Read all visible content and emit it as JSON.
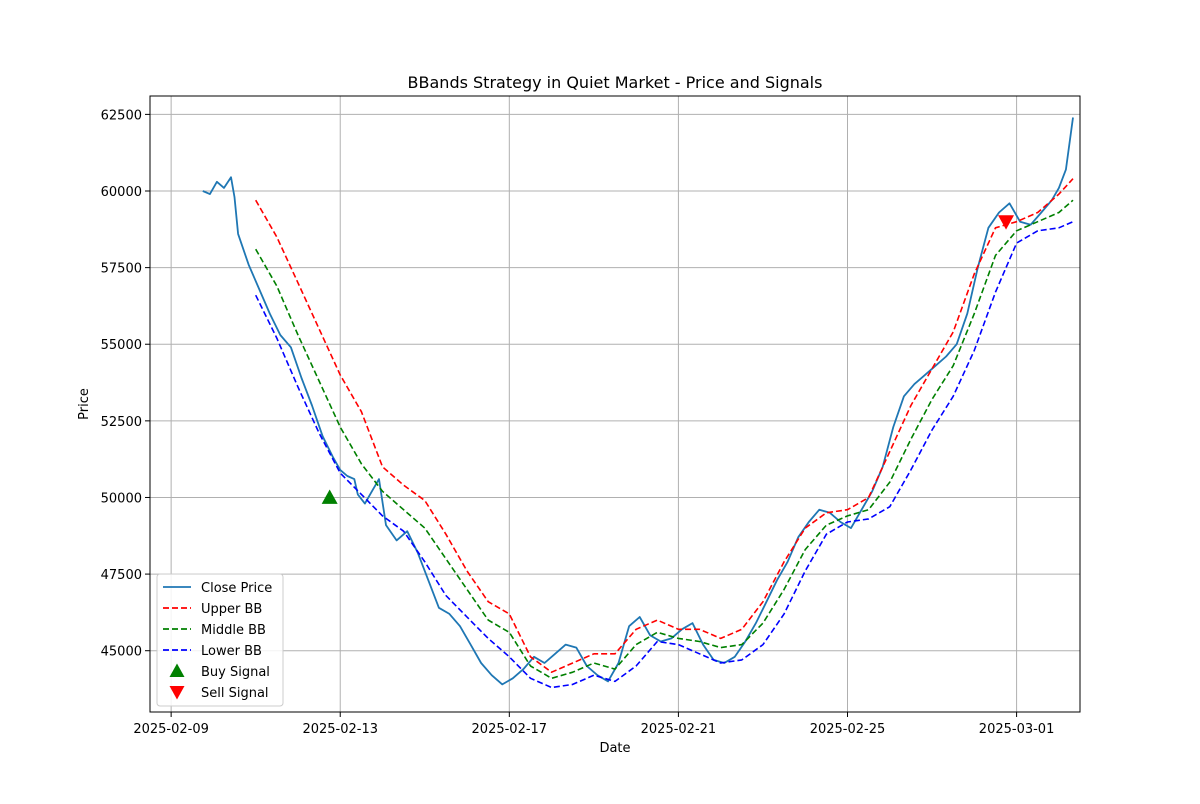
{
  "chart_data": {
    "type": "line",
    "title": "BBands Strategy in Quiet Market - Price and Signals",
    "xlabel": "Date",
    "ylabel": "Price",
    "x_range": [
      "2025-02-08 12:00",
      "2025-03-02 12:00"
    ],
    "ylim": [
      43000,
      63100
    ],
    "x_ticks": [
      "2025-02-09",
      "2025-02-13",
      "2025-02-17",
      "2025-02-21",
      "2025-02-25",
      "2025-03-01"
    ],
    "y_ticks": [
      45000,
      47500,
      50000,
      52500,
      55000,
      57500,
      60000,
      62500
    ],
    "grid": true,
    "legend_placement": "lower-left",
    "colors": {
      "close": "#1f77b4",
      "upper": "#ff0000",
      "middle": "#008000",
      "lower": "#0000ff",
      "buy": "#008000",
      "sell": "#ff0000"
    },
    "series": [
      {
        "name": "Close Price",
        "style": "solid",
        "points": [
          [
            "2025-02-09 18:00",
            60000
          ],
          [
            "2025-02-09 22:00",
            59900
          ],
          [
            "2025-02-10 02:00",
            60300
          ],
          [
            "2025-02-10 06:00",
            60100
          ],
          [
            "2025-02-10 10:00",
            60450
          ],
          [
            "2025-02-10 12:00",
            59800
          ],
          [
            "2025-02-10 14:00",
            58600
          ],
          [
            "2025-02-10 20:00",
            57600
          ],
          [
            "2025-02-11 02:00",
            56800
          ],
          [
            "2025-02-11 08:00",
            56000
          ],
          [
            "2025-02-11 14:00",
            55300
          ],
          [
            "2025-02-11 20:00",
            54900
          ],
          [
            "2025-02-12 02:00",
            53900
          ],
          [
            "2025-02-12 08:00",
            53000
          ],
          [
            "2025-02-12 14:00",
            52000
          ],
          [
            "2025-02-12 20:00",
            51300
          ],
          [
            "2025-02-13 00:00",
            50900
          ],
          [
            "2025-02-13 04:00",
            50700
          ],
          [
            "2025-02-13 08:00",
            50600
          ],
          [
            "2025-02-13 10:00",
            50100
          ],
          [
            "2025-02-13 14:00",
            49800
          ],
          [
            "2025-02-13 18:00",
            50200
          ],
          [
            "2025-02-13 22:00",
            50600
          ],
          [
            "2025-02-14 02:00",
            49100
          ],
          [
            "2025-02-14 08:00",
            48600
          ],
          [
            "2025-02-14 14:00",
            48900
          ],
          [
            "2025-02-14 20:00",
            48200
          ],
          [
            "2025-02-15 02:00",
            47300
          ],
          [
            "2025-02-15 08:00",
            46400
          ],
          [
            "2025-02-15 14:00",
            46200
          ],
          [
            "2025-02-15 20:00",
            45800
          ],
          [
            "2025-02-16 02:00",
            45200
          ],
          [
            "2025-02-16 08:00",
            44600
          ],
          [
            "2025-02-16 14:00",
            44200
          ],
          [
            "2025-02-16 20:00",
            43900
          ],
          [
            "2025-02-17 02:00",
            44100
          ],
          [
            "2025-02-17 08:00",
            44400
          ],
          [
            "2025-02-17 14:00",
            44800
          ],
          [
            "2025-02-17 20:00",
            44600
          ],
          [
            "2025-02-18 02:00",
            44900
          ],
          [
            "2025-02-18 08:00",
            45200
          ],
          [
            "2025-02-18 14:00",
            45100
          ],
          [
            "2025-02-18 20:00",
            44500
          ],
          [
            "2025-02-19 02:00",
            44200
          ],
          [
            "2025-02-19 08:00",
            44000
          ],
          [
            "2025-02-19 14:00",
            44600
          ],
          [
            "2025-02-19 20:00",
            45800
          ],
          [
            "2025-02-20 02:00",
            46100
          ],
          [
            "2025-02-20 08:00",
            45500
          ],
          [
            "2025-02-20 14:00",
            45300
          ],
          [
            "2025-02-20 20:00",
            45400
          ],
          [
            "2025-02-21 02:00",
            45700
          ],
          [
            "2025-02-21 08:00",
            45900
          ],
          [
            "2025-02-21 14:00",
            45200
          ],
          [
            "2025-02-21 20:00",
            44700
          ],
          [
            "2025-02-22 02:00",
            44600
          ],
          [
            "2025-02-22 08:00",
            44800
          ],
          [
            "2025-02-22 14:00",
            45300
          ],
          [
            "2025-02-22 20:00",
            45900
          ],
          [
            "2025-02-23 02:00",
            46600
          ],
          [
            "2025-02-23 08:00",
            47300
          ],
          [
            "2025-02-23 14:00",
            47900
          ],
          [
            "2025-02-23 20:00",
            48700
          ],
          [
            "2025-02-24 02:00",
            49200
          ],
          [
            "2025-02-24 08:00",
            49600
          ],
          [
            "2025-02-24 14:00",
            49500
          ],
          [
            "2025-02-24 20:00",
            49200
          ],
          [
            "2025-02-25 02:00",
            49000
          ],
          [
            "2025-02-25 08:00",
            49600
          ],
          [
            "2025-02-25 14:00",
            50200
          ],
          [
            "2025-02-25 20:00",
            51000
          ],
          [
            "2025-02-26 02:00",
            52300
          ],
          [
            "2025-02-26 08:00",
            53300
          ],
          [
            "2025-02-26 14:00",
            53700
          ],
          [
            "2025-02-26 20:00",
            54000
          ],
          [
            "2025-02-27 02:00",
            54300
          ],
          [
            "2025-02-27 08:00",
            54600
          ],
          [
            "2025-02-27 14:00",
            55000
          ],
          [
            "2025-02-27 20:00",
            56000
          ],
          [
            "2025-02-28 02:00",
            57500
          ],
          [
            "2025-02-28 08:00",
            58800
          ],
          [
            "2025-02-28 14:00",
            59300
          ],
          [
            "2025-02-28 20:00",
            59600
          ],
          [
            "2025-03-01 02:00",
            59000
          ],
          [
            "2025-03-01 08:00",
            58900
          ],
          [
            "2025-03-01 14:00",
            59300
          ],
          [
            "2025-03-01 20:00",
            59700
          ],
          [
            "2025-03-02 00:00",
            60100
          ],
          [
            "2025-03-02 04:00",
            60700
          ],
          [
            "2025-03-02 08:00",
            62400
          ]
        ]
      },
      {
        "name": "Upper BB",
        "style": "dashed",
        "points": [
          [
            "2025-02-11 00:00",
            59700
          ],
          [
            "2025-02-11 12:00",
            58500
          ],
          [
            "2025-02-12 00:00",
            57000
          ],
          [
            "2025-02-12 12:00",
            55500
          ],
          [
            "2025-02-13 00:00",
            54000
          ],
          [
            "2025-02-13 12:00",
            52800
          ],
          [
            "2025-02-14 00:00",
            51000
          ],
          [
            "2025-02-14 12:00",
            50400
          ],
          [
            "2025-02-15 00:00",
            49900
          ],
          [
            "2025-02-15 12:00",
            48800
          ],
          [
            "2025-02-16 00:00",
            47600
          ],
          [
            "2025-02-16 12:00",
            46600
          ],
          [
            "2025-02-17 00:00",
            46200
          ],
          [
            "2025-02-17 12:00",
            44800
          ],
          [
            "2025-02-18 00:00",
            44300
          ],
          [
            "2025-02-18 12:00",
            44600
          ],
          [
            "2025-02-19 00:00",
            44900
          ],
          [
            "2025-02-19 12:00",
            44900
          ],
          [
            "2025-02-20 00:00",
            45700
          ],
          [
            "2025-02-20 12:00",
            46000
          ],
          [
            "2025-02-21 00:00",
            45700
          ],
          [
            "2025-02-21 12:00",
            45700
          ],
          [
            "2025-02-22 00:00",
            45400
          ],
          [
            "2025-02-22 12:00",
            45700
          ],
          [
            "2025-02-23 00:00",
            46600
          ],
          [
            "2025-02-23 12:00",
            47900
          ],
          [
            "2025-02-24 00:00",
            49000
          ],
          [
            "2025-02-24 12:00",
            49500
          ],
          [
            "2025-02-25 00:00",
            49600
          ],
          [
            "2025-02-25 12:00",
            50000
          ],
          [
            "2025-02-26 00:00",
            51500
          ],
          [
            "2025-02-26 12:00",
            53000
          ],
          [
            "2025-02-27 00:00",
            54200
          ],
          [
            "2025-02-27 12:00",
            55400
          ],
          [
            "2025-02-28 00:00",
            57300
          ],
          [
            "2025-02-28 12:00",
            58800
          ],
          [
            "2025-03-01 00:00",
            59000
          ],
          [
            "2025-03-01 12:00",
            59300
          ],
          [
            "2025-03-02 00:00",
            59900
          ],
          [
            "2025-03-02 08:00",
            60400
          ]
        ]
      },
      {
        "name": "Middle BB",
        "style": "dashed",
        "points": [
          [
            "2025-02-11 00:00",
            58100
          ],
          [
            "2025-02-11 12:00",
            56900
          ],
          [
            "2025-02-12 00:00",
            55300
          ],
          [
            "2025-02-12 12:00",
            53800
          ],
          [
            "2025-02-13 00:00",
            52300
          ],
          [
            "2025-02-13 12:00",
            51100
          ],
          [
            "2025-02-14 00:00",
            50200
          ],
          [
            "2025-02-14 12:00",
            49600
          ],
          [
            "2025-02-15 00:00",
            49000
          ],
          [
            "2025-02-15 12:00",
            48000
          ],
          [
            "2025-02-16 00:00",
            47000
          ],
          [
            "2025-02-16 12:00",
            46000
          ],
          [
            "2025-02-17 00:00",
            45600
          ],
          [
            "2025-02-17 12:00",
            44500
          ],
          [
            "2025-02-18 00:00",
            44100
          ],
          [
            "2025-02-18 12:00",
            44300
          ],
          [
            "2025-02-19 00:00",
            44600
          ],
          [
            "2025-02-19 12:00",
            44400
          ],
          [
            "2025-02-20 00:00",
            45200
          ],
          [
            "2025-02-20 12:00",
            45600
          ],
          [
            "2025-02-21 00:00",
            45400
          ],
          [
            "2025-02-21 12:00",
            45300
          ],
          [
            "2025-02-22 00:00",
            45100
          ],
          [
            "2025-02-22 12:00",
            45200
          ],
          [
            "2025-02-23 00:00",
            45900
          ],
          [
            "2025-02-23 12:00",
            47000
          ],
          [
            "2025-02-24 00:00",
            48300
          ],
          [
            "2025-02-24 12:00",
            49100
          ],
          [
            "2025-02-25 00:00",
            49400
          ],
          [
            "2025-02-25 12:00",
            49600
          ],
          [
            "2025-02-26 00:00",
            50500
          ],
          [
            "2025-02-26 12:00",
            51900
          ],
          [
            "2025-02-27 00:00",
            53200
          ],
          [
            "2025-02-27 12:00",
            54300
          ],
          [
            "2025-02-28 00:00",
            56000
          ],
          [
            "2025-02-28 12:00",
            57900
          ],
          [
            "2025-03-01 00:00",
            58700
          ],
          [
            "2025-03-01 12:00",
            59000
          ],
          [
            "2025-03-02 00:00",
            59300
          ],
          [
            "2025-03-02 08:00",
            59700
          ]
        ]
      },
      {
        "name": "Lower BB",
        "style": "dashed",
        "points": [
          [
            "2025-02-11 00:00",
            56600
          ],
          [
            "2025-02-11 12:00",
            55200
          ],
          [
            "2025-02-12 00:00",
            53600
          ],
          [
            "2025-02-12 12:00",
            52100
          ],
          [
            "2025-02-13 00:00",
            50800
          ],
          [
            "2025-02-13 12:00",
            50100
          ],
          [
            "2025-02-14 00:00",
            49400
          ],
          [
            "2025-02-14 12:00",
            48900
          ],
          [
            "2025-02-15 00:00",
            47900
          ],
          [
            "2025-02-15 12:00",
            46800
          ],
          [
            "2025-02-16 00:00",
            46100
          ],
          [
            "2025-02-16 12:00",
            45400
          ],
          [
            "2025-02-17 00:00",
            44800
          ],
          [
            "2025-02-17 12:00",
            44100
          ],
          [
            "2025-02-18 00:00",
            43800
          ],
          [
            "2025-02-18 12:00",
            43900
          ],
          [
            "2025-02-19 00:00",
            44200
          ],
          [
            "2025-02-19 12:00",
            44000
          ],
          [
            "2025-02-20 00:00",
            44500
          ],
          [
            "2025-02-20 12:00",
            45300
          ],
          [
            "2025-02-21 00:00",
            45200
          ],
          [
            "2025-02-21 12:00",
            44900
          ],
          [
            "2025-02-22 00:00",
            44600
          ],
          [
            "2025-02-22 12:00",
            44700
          ],
          [
            "2025-02-23 00:00",
            45200
          ],
          [
            "2025-02-23 12:00",
            46200
          ],
          [
            "2025-02-24 00:00",
            47600
          ],
          [
            "2025-02-24 12:00",
            48800
          ],
          [
            "2025-02-25 00:00",
            49200
          ],
          [
            "2025-02-25 12:00",
            49300
          ],
          [
            "2025-02-26 00:00",
            49700
          ],
          [
            "2025-02-26 12:00",
            50900
          ],
          [
            "2025-02-27 00:00",
            52200
          ],
          [
            "2025-02-27 12:00",
            53300
          ],
          [
            "2025-02-28 00:00",
            54800
          ],
          [
            "2025-02-28 12:00",
            56700
          ],
          [
            "2025-03-01 00:00",
            58300
          ],
          [
            "2025-03-01 12:00",
            58700
          ],
          [
            "2025-03-02 00:00",
            58800
          ],
          [
            "2025-03-02 08:00",
            59000
          ]
        ]
      }
    ],
    "signals": [
      {
        "name": "Buy Signal",
        "marker": "triangle-up",
        "color": "#008000",
        "x": "2025-02-12 18:00",
        "y": 50000
      },
      {
        "name": "Sell Signal",
        "marker": "triangle-down",
        "color": "#ff0000",
        "x": "2025-02-28 18:00",
        "y": 59000
      }
    ]
  }
}
